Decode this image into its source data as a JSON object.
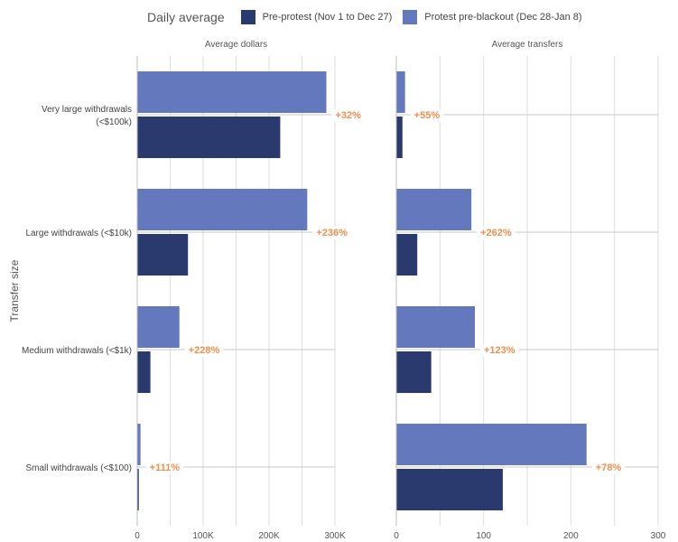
{
  "chart_data": {
    "type": "bar",
    "orientation": "horizontal",
    "legend": {
      "title": "Daily average",
      "placement": "top",
      "series": [
        {
          "name": "Pre-protest (Nov 1 to Dec 27)",
          "color": "#2b3a6e"
        },
        {
          "name": "Protest pre-blackout (Dec 28-Jan 8)",
          "color": "#6478bd"
        }
      ]
    },
    "ylabel": "Transfer size",
    "categories": [
      [
        "Very large withdrawals",
        "(<$100k)"
      ],
      [
        "Large withdrawals (<$10k)"
      ],
      [
        "Medium withdrawals (<$1k)"
      ],
      [
        "Small withdrawals (<$100)"
      ]
    ],
    "panels": [
      {
        "title": "Average dollars",
        "xlim": [
          0,
          300000
        ],
        "ticks": [
          {
            "value": 0,
            "label": "0"
          },
          {
            "value": 100000,
            "label": "100K"
          },
          {
            "value": 200000,
            "label": "200K"
          },
          {
            "value": 300000,
            "label": "300K"
          }
        ],
        "minor_step": 50000,
        "series": [
          {
            "name": "Protest pre-blackout (Dec 28-Jan 8)",
            "values": [
              287000,
              258000,
              64000,
              5000
            ]
          },
          {
            "name": "Pre-protest (Nov 1 to Dec 27)",
            "values": [
              217000,
              77000,
              20000,
              2400
            ]
          }
        ],
        "annotations": [
          "+32%",
          "+236%",
          "+228%",
          "+111%"
        ]
      },
      {
        "title": "Average transfers",
        "xlim": [
          0,
          300
        ],
        "ticks": [
          {
            "value": 0,
            "label": "0"
          },
          {
            "value": 100,
            "label": "100"
          },
          {
            "value": 200,
            "label": "200"
          },
          {
            "value": 300,
            "label": "300"
          }
        ],
        "minor_step": 50,
        "series": [
          {
            "name": "Protest pre-blackout (Dec 28-Jan 8)",
            "values": [
              10,
              86,
              90,
              218
            ]
          },
          {
            "name": "Pre-protest (Nov 1 to Dec 27)",
            "values": [
              7,
              24,
              40,
              122
            ]
          }
        ],
        "annotations": [
          "+55%",
          "+262%",
          "+123%",
          "+78%"
        ]
      }
    ],
    "annotation_color": "#f28e4c"
  }
}
